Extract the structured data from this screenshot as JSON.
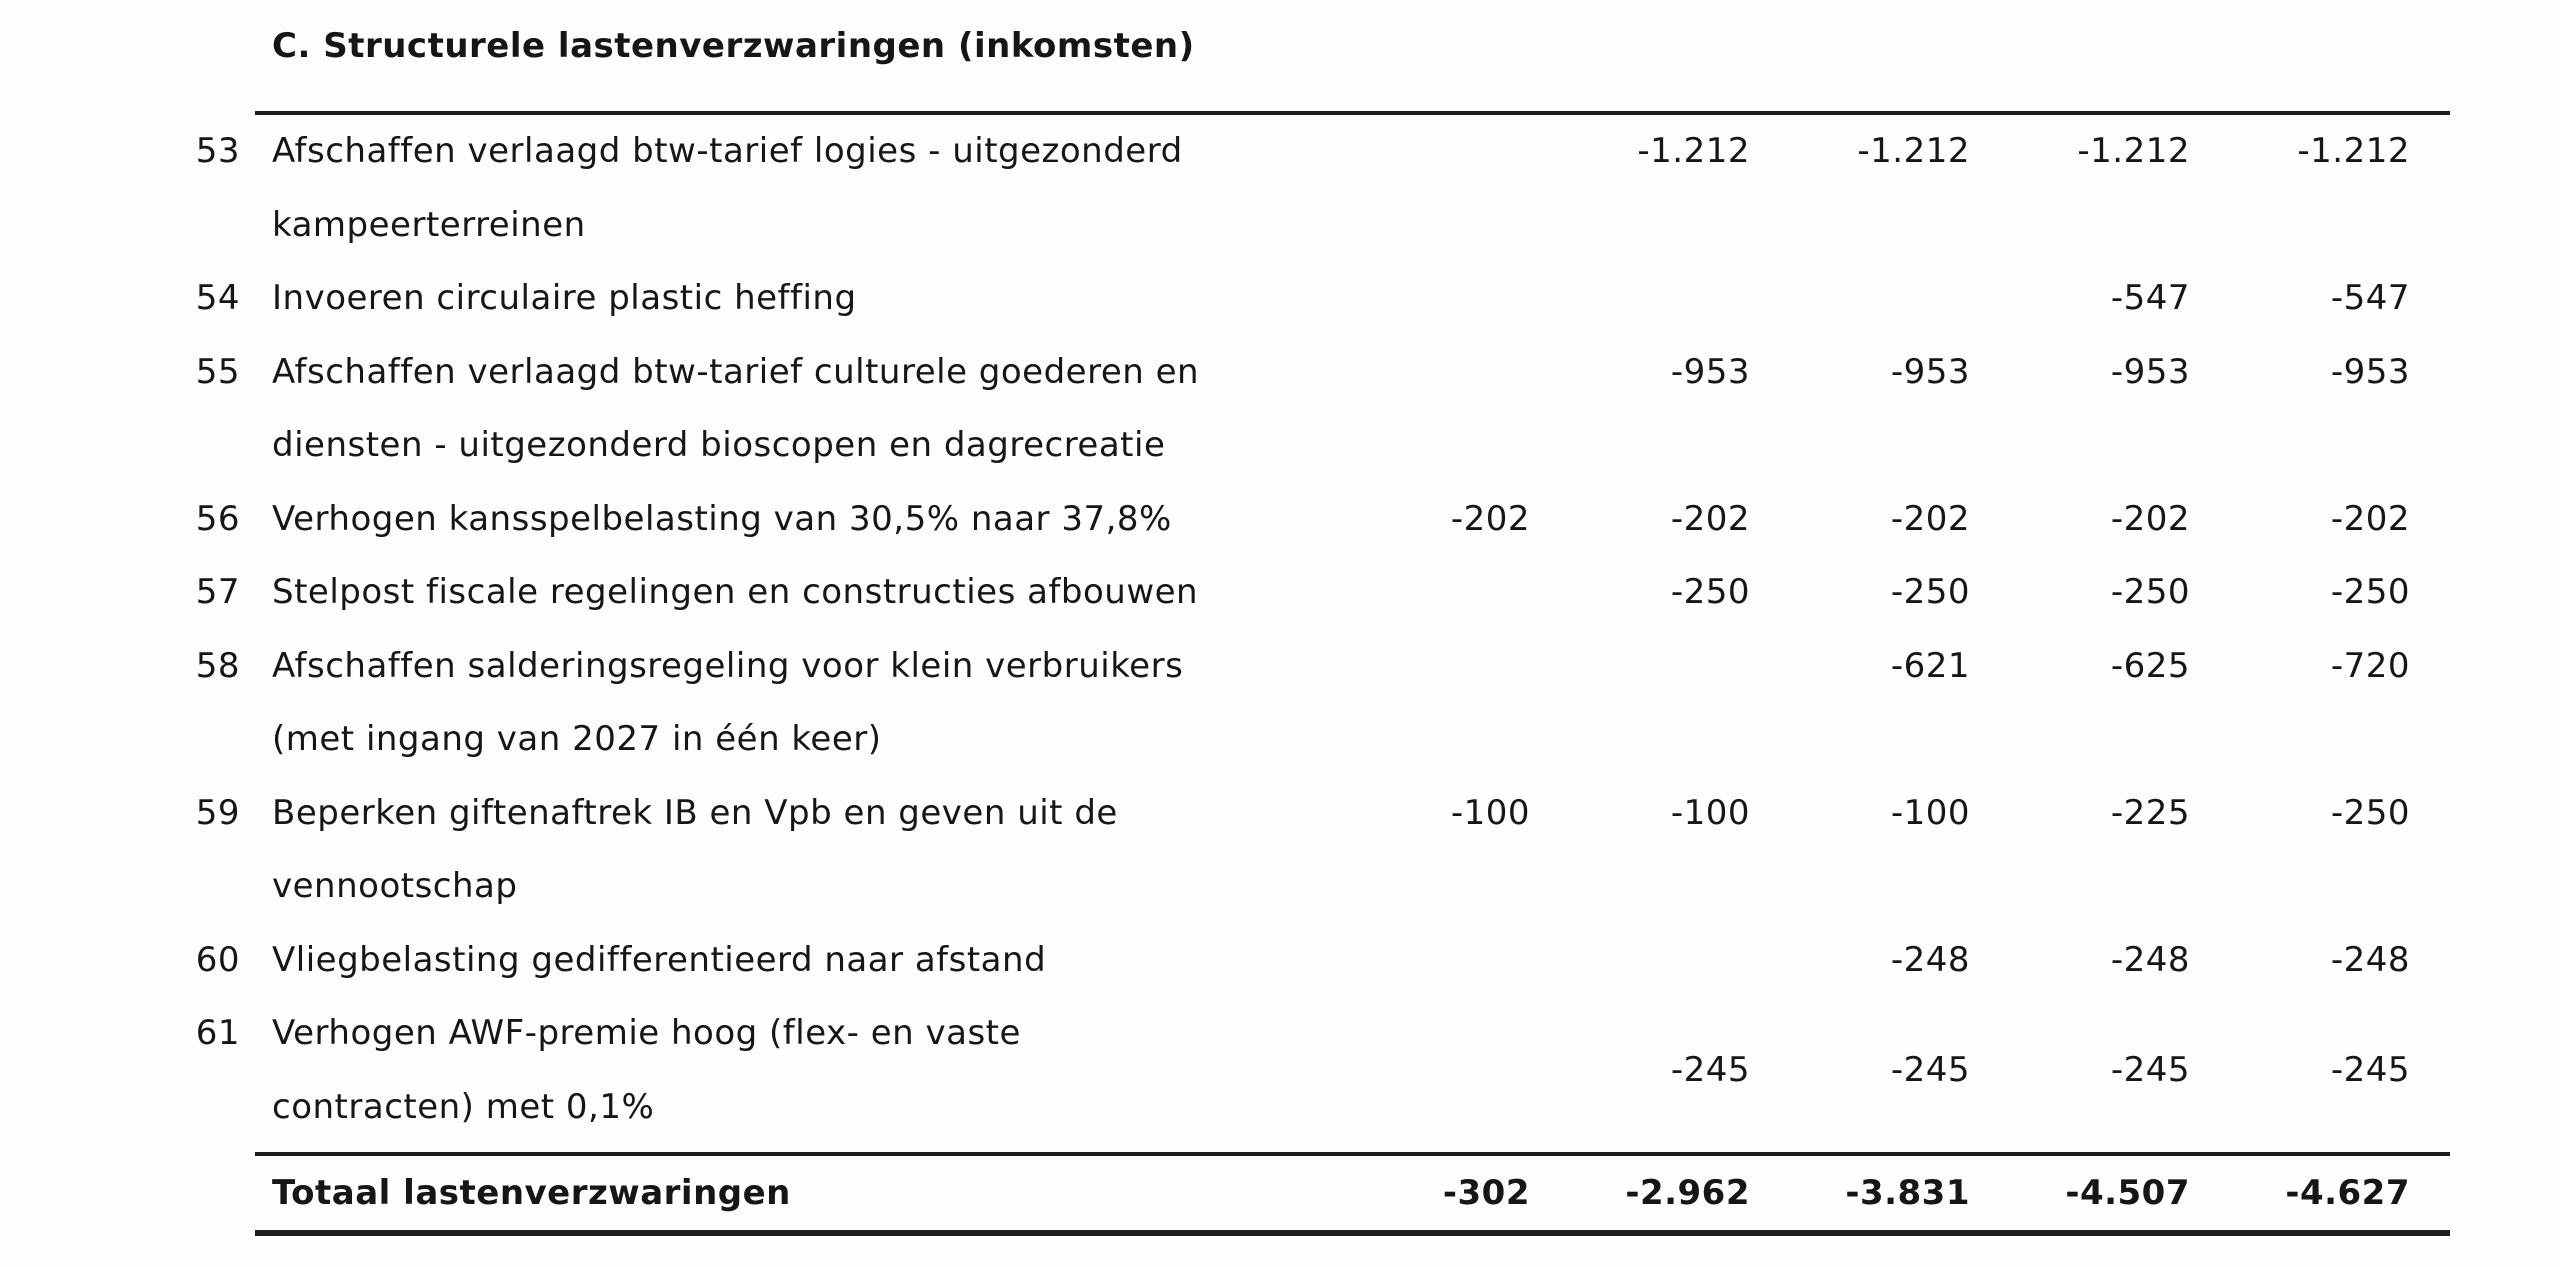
{
  "colors": {
    "background": "#fdfdfd",
    "text": "#161616",
    "rule": "#1c1c1c"
  },
  "table": {
    "section_title": "C. Structurele lastenverzwaringen (inkomsten)",
    "rows": [
      {
        "num": "53",
        "desc_lines": [
          "Afschaffen verlaagd btw-tarief logies - uitgezonderd",
          "kampeerterreinen"
        ],
        "values": [
          "",
          "-1.212",
          "-1.212",
          "-1.212",
          "-1.212"
        ]
      },
      {
        "num": "54",
        "desc_lines": [
          "Invoeren circulaire plastic heffing"
        ],
        "values": [
          "",
          "",
          "",
          "-547",
          "-547"
        ]
      },
      {
        "num": "55",
        "desc_lines": [
          "Afschaffen verlaagd btw-tarief culturele goederen en",
          "diensten - uitgezonderd bioscopen en dagrecreatie"
        ],
        "values": [
          "",
          "-953",
          "-953",
          "-953",
          "-953"
        ]
      },
      {
        "num": "56",
        "desc_lines": [
          "Verhogen kansspelbelasting van 30,5% naar 37,8%"
        ],
        "values": [
          "-202",
          "-202",
          "-202",
          "-202",
          "-202"
        ]
      },
      {
        "num": "57",
        "desc_lines": [
          "Stelpost fiscale regelingen en constructies afbouwen"
        ],
        "values": [
          "",
          "-250",
          "-250",
          "-250",
          "-250"
        ]
      },
      {
        "num": "58",
        "desc_lines": [
          "Afschaffen salderingsregeling voor klein verbruikers",
          "(met ingang van 2027 in één keer)"
        ],
        "values": [
          "",
          "",
          "-621",
          "-625",
          "-720"
        ]
      },
      {
        "num": "59",
        "desc_lines": [
          "Beperken giftenaftrek IB en Vpb en geven uit de",
          "vennootschap"
        ],
        "values": [
          "-100",
          "-100",
          "-100",
          "-225",
          "-250"
        ]
      },
      {
        "num": "60",
        "desc_lines": [
          "Vliegbelasting gedifferentieerd naar afstand"
        ],
        "values": [
          "",
          "",
          "-248",
          "-248",
          "-248"
        ]
      },
      {
        "num": "61",
        "desc_lines": [
          "Verhogen AWF-premie hoog (flex- en vaste",
          "contracten) met 0,1%"
        ],
        "values": [
          "",
          "-245",
          "-245",
          "-245",
          "-245"
        ]
      }
    ],
    "total": {
      "label": "Totaal lastenverzwaringen",
      "values": [
        "-302",
        "-2.962",
        "-3.831",
        "-4.507",
        "-4.627"
      ]
    }
  }
}
